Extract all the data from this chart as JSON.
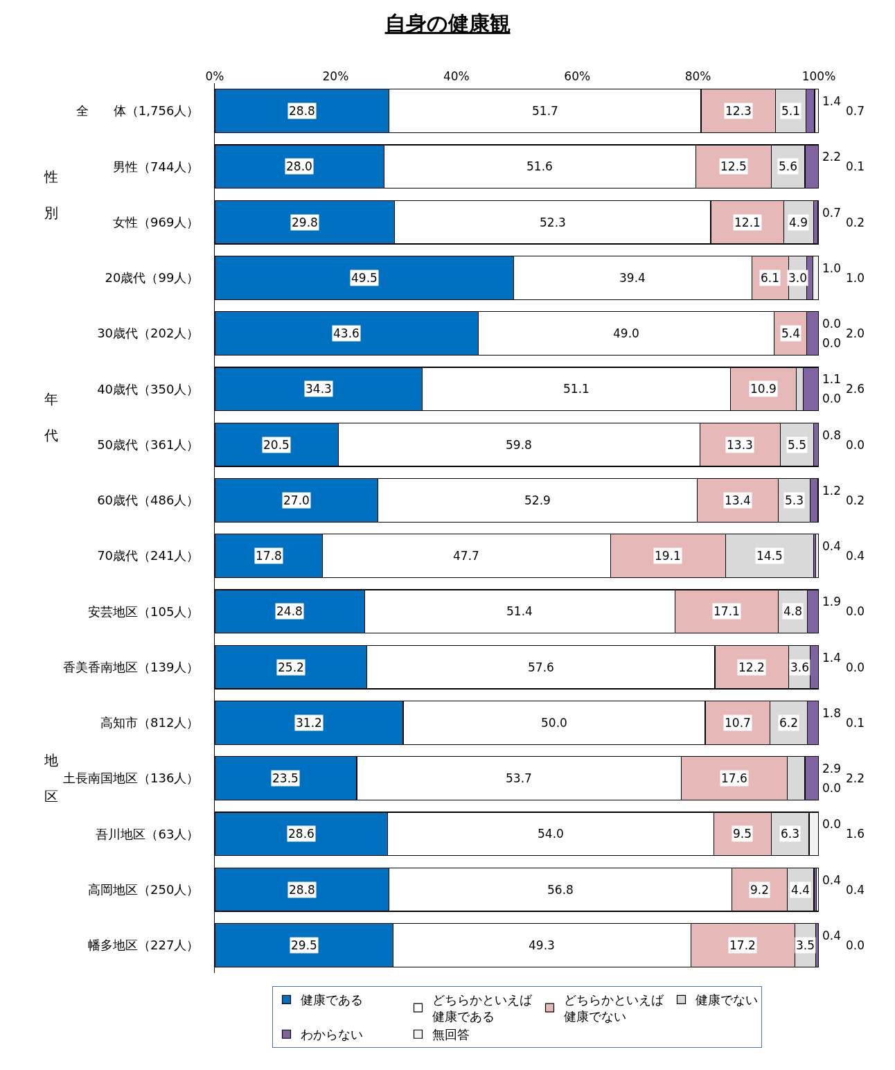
{
  "chart_data": {
    "type": "bar",
    "orientation": "horizontal",
    "stacked": true,
    "title": "自身の健康観",
    "categories": [
      "全　　体（1,756人）",
      "男性（744人）",
      "女性（969人）",
      "20歳代（99人）",
      "30歳代（202人）",
      "40歳代（350人）",
      "50歳代（361人）",
      "60歳代（486人）",
      "70歳代（241人）",
      "安芸地区（105人）",
      "香美香南地区（139人）",
      "高知市（812人）",
      "土長南国地区（136人）",
      "吾川地区（63人）",
      "高岡地区（250人）",
      "幡多地区（227人）"
    ],
    "series": [
      {
        "name": "健康である",
        "color": "#0070c0",
        "values": [
          28.8,
          28.0,
          29.8,
          49.5,
          43.6,
          34.3,
          20.5,
          27.0,
          17.8,
          24.8,
          25.2,
          31.2,
          23.5,
          28.6,
          28.8,
          29.5
        ],
        "value_labels": [
          "28.8",
          "28.0",
          "29.8",
          "49.5",
          "43.6",
          "34.3",
          "20.5",
          "27.0",
          "17.8",
          "24.8",
          "25.2",
          "31.2",
          "23.5",
          "28.6",
          "28.8",
          "29.5"
        ]
      },
      {
        "name": "どちらかといえば健康である",
        "color": "#ffffff",
        "values": [
          51.7,
          51.6,
          52.3,
          39.4,
          49.0,
          51.1,
          59.8,
          52.9,
          47.7,
          51.4,
          57.6,
          50.0,
          53.7,
          54.0,
          56.8,
          49.3
        ],
        "value_labels": [
          "51.7",
          "51.6",
          "52.3",
          "39.4",
          "49.0",
          "51.1",
          "59.8",
          "52.9",
          "47.7",
          "51.4",
          "57.6",
          "50.0",
          "53.7",
          "54.0",
          "56.8",
          "49.3"
        ]
      },
      {
        "name": "どちらかといえば健康でない",
        "color": "#e6b8b7",
        "values": [
          12.3,
          12.5,
          12.1,
          6.1,
          5.4,
          10.9,
          13.3,
          13.4,
          19.1,
          17.1,
          12.2,
          10.7,
          17.6,
          9.5,
          9.2,
          17.2
        ],
        "value_labels": [
          "12.3",
          "12.5",
          "12.1",
          "6.1",
          "5.4",
          "10.9",
          "13.3",
          "13.4",
          "19.1",
          "17.1",
          "12.2",
          "10.7",
          "17.6",
          "9.5",
          "9.2",
          "17.2"
        ]
      },
      {
        "name": "健康でない",
        "color": "#d9d9d9",
        "values": [
          5.1,
          5.6,
          4.9,
          3.0,
          0.0,
          1.1,
          5.5,
          5.3,
          14.5,
          4.8,
          3.6,
          6.2,
          2.9,
          6.3,
          4.4,
          3.5
        ],
        "value_labels": [
          "5.1",
          "5.6",
          "4.9",
          "3.0",
          "0.0",
          "1.1",
          "5.5",
          "5.3",
          "14.5",
          "4.8",
          "3.6",
          "6.2",
          "2.9",
          "6.3",
          "4.4",
          "3.5"
        ]
      },
      {
        "name": "わからない",
        "color": "#8064a2",
        "values": [
          1.4,
          2.2,
          0.7,
          1.0,
          2.0,
          2.6,
          0.8,
          1.2,
          0.4,
          1.9,
          1.4,
          1.8,
          2.2,
          0.0,
          0.4,
          0.4
        ],
        "value_labels": [
          "1.4",
          "2.2",
          "0.7",
          "1.0",
          "2.0",
          "2.6",
          "0.8",
          "1.2",
          "0.4",
          "1.9",
          "1.4",
          "1.8",
          "2.2",
          "0.0",
          "0.4",
          "0.4"
        ]
      },
      {
        "name": "無回答",
        "color": "#f2f2f2",
        "values": [
          0.7,
          0.1,
          0.2,
          1.0,
          0.0,
          0.0,
          0.0,
          0.2,
          0.4,
          0.0,
          0.0,
          0.1,
          0.0,
          1.6,
          0.4,
          0.0
        ],
        "value_labels": [
          "0.7",
          "0.1",
          "0.2",
          "1.0",
          "0.0",
          "0.0",
          "0.0",
          "0.2",
          "0.4",
          "0.0",
          "0.0",
          "0.1",
          "0.0",
          "1.6",
          "0.4",
          "0.0"
        ]
      }
    ],
    "xlim": [
      0,
      100
    ],
    "xticks": [
      {
        "value": 0,
        "label": "0%"
      },
      {
        "value": 20,
        "label": "20%"
      },
      {
        "value": 40,
        "label": "40%"
      },
      {
        "value": 60,
        "label": "60%"
      },
      {
        "value": 80,
        "label": "80%"
      },
      {
        "value": 100,
        "label": "100%"
      }
    ],
    "legend": "bottom",
    "annotations": [
      "性別",
      "年代",
      "地区"
    ]
  }
}
